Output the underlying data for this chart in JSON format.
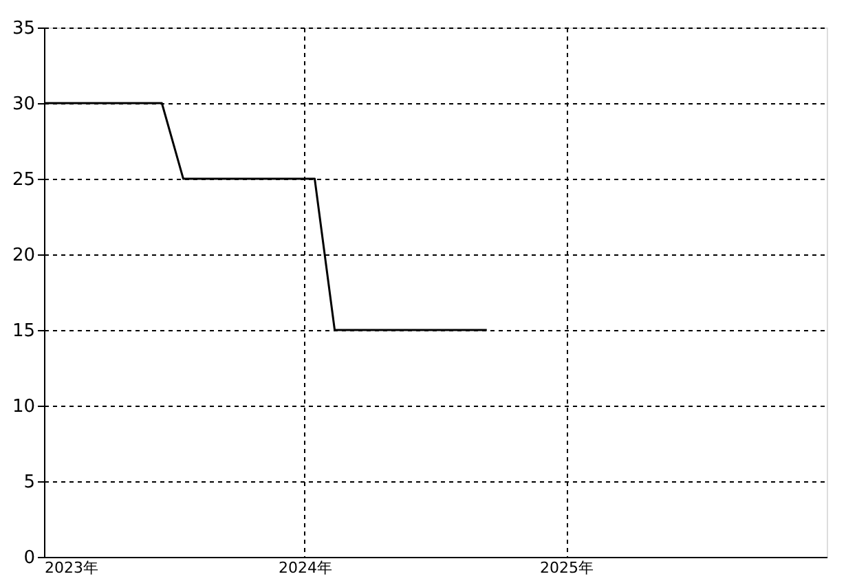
{
  "chart_data": {
    "type": "line",
    "x": [
      "2023-01-01",
      "2023-06-15",
      "2023-07-15",
      "2024-01-15",
      "2024-02-12",
      "2024-09-12"
    ],
    "series": [
      {
        "color": "#000000",
        "values": [
          30,
          30,
          25,
          25,
          15,
          15
        ]
      }
    ],
    "xlim": [
      "2023-01-01",
      "2026-01-01"
    ],
    "xticks": [
      {
        "value": "2023-01-01",
        "label": "2023年"
      },
      {
        "value": "2024-01-01",
        "label": "2024年"
      },
      {
        "value": "2025-01-01",
        "label": "2025年"
      }
    ],
    "ylim": [
      0,
      35
    ],
    "yticks": [
      0,
      5,
      10,
      15,
      20,
      25,
      30,
      35
    ],
    "grid": true,
    "marker": "none",
    "line_style": "solid"
  }
}
